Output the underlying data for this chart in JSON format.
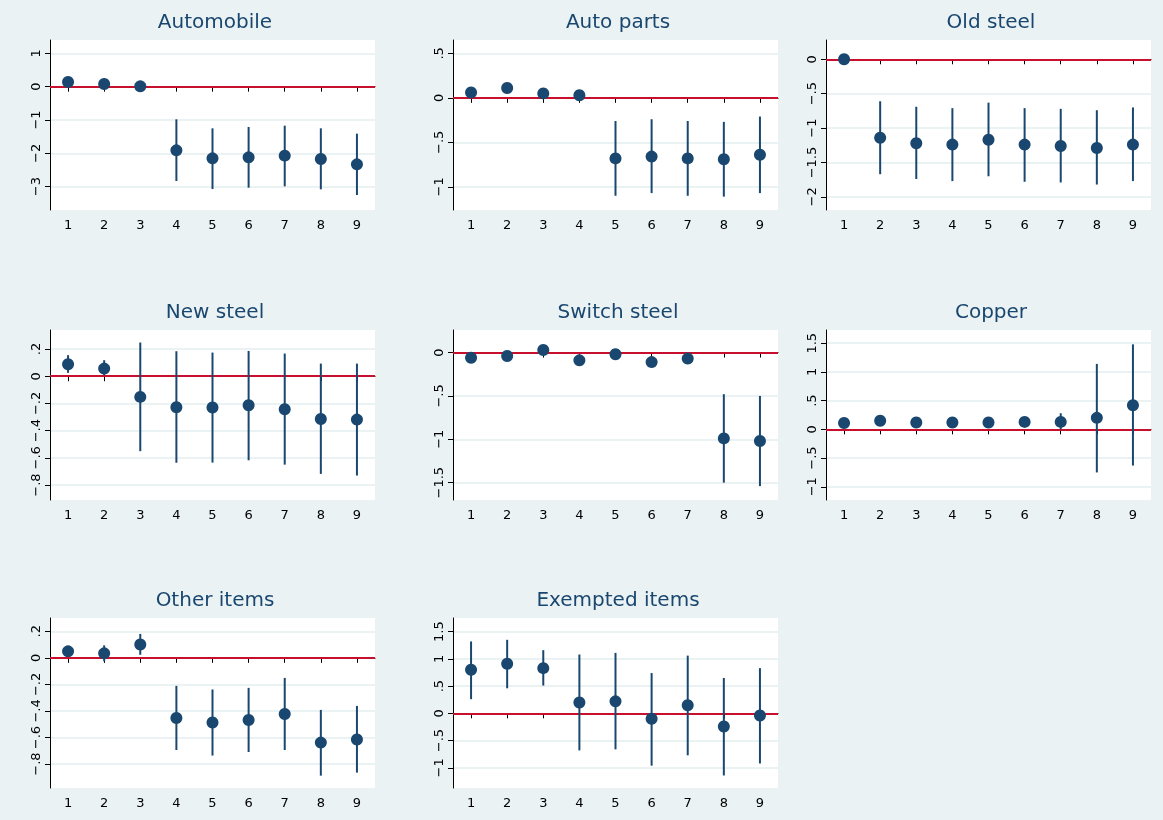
{
  "chart_data": [
    {
      "type": "scatter",
      "title": "Automobile",
      "categories": [
        "1",
        "2",
        "3",
        "4",
        "5",
        "6",
        "7",
        "8",
        "9"
      ],
      "color": "#1a476f",
      "marker": "circle",
      "grid": "y",
      "values": [
        0.14,
        0.08,
        0.01,
        -1.91,
        -2.15,
        -2.12,
        -2.07,
        -2.17,
        -2.33
      ],
      "errors": [
        null,
        null,
        null,
        [
          -2.83,
          -0.98
        ],
        [
          -3.07,
          -1.25
        ],
        [
          -3.03,
          -1.21
        ],
        [
          -2.99,
          -1.17
        ],
        [
          -3.08,
          -1.25
        ],
        [
          -3.25,
          -1.41
        ]
      ],
      "ylim": [
        -3.7,
        1.4
      ],
      "yticks": [
        {
          "value": -3,
          "label": "−3"
        },
        {
          "value": -2,
          "label": "−2"
        },
        {
          "value": -1,
          "label": "−1"
        },
        0,
        1
      ],
      "ref_lines": [
        {
          "axis": "y",
          "value": 0,
          "color": "#c8102e"
        }
      ]
    },
    {
      "type": "scatter",
      "title": "Auto parts",
      "categories": [
        "1",
        "2",
        "3",
        "4",
        "5",
        "6",
        "7",
        "8",
        "9"
      ],
      "color": "#1a476f",
      "marker": "circle",
      "grid": "y",
      "values": [
        0.06,
        0.11,
        0.05,
        0.03,
        -0.68,
        -0.66,
        -0.68,
        -0.69,
        -0.64
      ],
      "errors": [
        null,
        null,
        null,
        null,
        [
          -1.1,
          -0.26
        ],
        [
          -1.07,
          -0.24
        ],
        [
          -1.1,
          -0.26
        ],
        [
          -1.11,
          -0.27
        ],
        [
          -1.07,
          -0.21
        ]
      ],
      "ylim": [
        -1.26,
        0.65
      ],
      "yticks": [
        {
          "value": -1,
          "label": "−1"
        },
        {
          "value": -0.5,
          "label": "−.5"
        },
        0,
        {
          "value": 0.5,
          "label": ".5"
        }
      ],
      "ref_lines": [
        {
          "axis": "y",
          "value": 0,
          "color": "#c8102e"
        }
      ]
    },
    {
      "type": "scatter",
      "title": "Old steel",
      "categories": [
        "1",
        "2",
        "3",
        "4",
        "5",
        "6",
        "7",
        "8",
        "9"
      ],
      "color": "#1a476f",
      "marker": "circle",
      "grid": "y",
      "values": [
        0,
        -1.14,
        -1.22,
        -1.24,
        -1.17,
        -1.24,
        -1.26,
        -1.29,
        -1.24
      ],
      "errors": [
        null,
        [
          -1.67,
          -0.61
        ],
        [
          -1.74,
          -0.69
        ],
        [
          -1.77,
          -0.71
        ],
        [
          -1.7,
          -0.63
        ],
        [
          -1.78,
          -0.71
        ],
        [
          -1.79,
          -0.72
        ],
        [
          -1.82,
          -0.74
        ],
        [
          -1.77,
          -0.7
        ]
      ],
      "ylim": [
        -2.19,
        0.28
      ],
      "yticks": [
        {
          "value": -2,
          "label": "−2"
        },
        {
          "value": -1.5,
          "label": "−1.5"
        },
        {
          "value": -1,
          "label": "−1"
        },
        {
          "value": -0.5,
          "label": "−.5"
        },
        0
      ],
      "ref_lines": [
        {
          "axis": "y",
          "value": 0,
          "color": "#c8102e"
        }
      ]
    },
    {
      "type": "scatter",
      "title": "New steel",
      "categories": [
        "1",
        "2",
        "3",
        "4",
        "5",
        "6",
        "7",
        "8",
        "9"
      ],
      "color": "#1a476f",
      "marker": "circle",
      "grid": "y",
      "values": [
        0.088,
        0.056,
        -0.152,
        -0.228,
        -0.23,
        -0.213,
        -0.243,
        -0.314,
        -0.319
      ],
      "errors": [
        [
          0.025,
          0.155
        ],
        [
          0.007,
          0.118
        ],
        [
          -0.551,
          0.248
        ],
        [
          -0.636,
          0.184
        ],
        [
          -0.635,
          0.174
        ],
        [
          -0.618,
          0.186
        ],
        [
          -0.65,
          0.167
        ],
        [
          -0.718,
          0.093
        ],
        [
          -0.73,
          0.093
        ]
      ],
      "ylim": [
        -0.91,
        0.34
      ],
      "yticks": [
        {
          "value": -0.8,
          "label": "−.8"
        },
        {
          "value": -0.6,
          "label": "−.6"
        },
        {
          "value": -0.4,
          "label": "−.4"
        },
        {
          "value": -0.2,
          "label": "−.2"
        },
        0,
        {
          "value": 0.2,
          "label": ".2"
        }
      ],
      "ref_lines": [
        {
          "axis": "y",
          "value": 0,
          "color": "#c8102e"
        }
      ]
    },
    {
      "type": "scatter",
      "title": "Switch steel",
      "categories": [
        "1",
        "2",
        "3",
        "4",
        "5",
        "6",
        "7",
        "8",
        "9"
      ],
      "color": "#1a476f",
      "marker": "circle",
      "grid": "y",
      "values": [
        -0.06,
        -0.04,
        0.03,
        -0.09,
        -0.02,
        -0.11,
        -0.07,
        -0.99,
        -1.02
      ],
      "errors": [
        null,
        null,
        null,
        null,
        null,
        null,
        null,
        [
          -1.5,
          -0.48
        ],
        [
          -1.54,
          -0.5
        ]
      ],
      "ylim": [
        -1.7,
        0.26
      ],
      "yticks": [
        {
          "value": -1.5,
          "label": "−1.5"
        },
        {
          "value": -1,
          "label": "−1"
        },
        {
          "value": -0.5,
          "label": "−.5"
        },
        0
      ],
      "ref_lines": [
        {
          "axis": "y",
          "value": 0,
          "color": "#c8102e"
        }
      ]
    },
    {
      "type": "scatter",
      "title": "Copper",
      "categories": [
        "1",
        "2",
        "3",
        "4",
        "5",
        "6",
        "7",
        "8",
        "9"
      ],
      "color": "#1a476f",
      "marker": "circle",
      "grid": "y",
      "values": [
        0.11,
        0.15,
        0.12,
        0.12,
        0.12,
        0.13,
        0.13,
        0.2,
        0.42
      ],
      "errors": [
        null,
        null,
        null,
        null,
        null,
        null,
        [
          0,
          0.28
        ],
        [
          -0.75,
          1.14
        ],
        [
          -0.63,
          1.48
        ]
      ],
      "ylim": [
        -1.23,
        1.73
      ],
      "yticks": [
        {
          "value": -1,
          "label": "−1"
        },
        {
          "value": -0.5,
          "label": "−.5"
        },
        0,
        {
          "value": 0.5,
          "label": ".5"
        },
        1,
        1.5
      ],
      "ref_lines": [
        {
          "axis": "y",
          "value": 0,
          "color": "#c8102e"
        }
      ]
    },
    {
      "type": "scatter",
      "title": "Other items",
      "categories": [
        "1",
        "2",
        "3",
        "4",
        "5",
        "6",
        "7",
        "8",
        "9"
      ],
      "color": "#1a476f",
      "marker": "circle",
      "grid": "y",
      "values": [
        0.049,
        0.034,
        0.1,
        -0.453,
        -0.487,
        -0.468,
        -0.423,
        -0.638,
        -0.615
      ],
      "errors": [
        null,
        [
          -0.026,
          0.094
        ],
        [
          0.023,
          0.18
        ],
        [
          -0.694,
          -0.211
        ],
        [
          -0.736,
          -0.238
        ],
        [
          -0.709,
          -0.226
        ],
        [
          -0.694,
          -0.151
        ],
        [
          -0.887,
          -0.392
        ],
        [
          -0.864,
          -0.362
        ]
      ],
      "ylim": [
        -0.98,
        0.3
      ],
      "yticks": [
        {
          "value": -0.8,
          "label": "−.8"
        },
        {
          "value": -0.6,
          "label": "−.6"
        },
        {
          "value": -0.4,
          "label": "−.4"
        },
        {
          "value": -0.2,
          "label": "−.2"
        },
        0,
        {
          "value": 0.2,
          "label": ".2"
        }
      ],
      "ref_lines": [
        {
          "axis": "y",
          "value": 0,
          "color": "#c8102e"
        }
      ]
    },
    {
      "type": "scatter",
      "title": "Exempted items",
      "categories": [
        "1",
        "2",
        "3",
        "4",
        "5",
        "6",
        "7",
        "8",
        "9"
      ],
      "color": "#1a476f",
      "marker": "circle",
      "grid": "y",
      "values": [
        0.8,
        0.91,
        0.83,
        0.2,
        0.22,
        -0.1,
        0.15,
        -0.24,
        -0.04
      ],
      "errors": [
        [
          0.26,
          1.32
        ],
        [
          0.46,
          1.35
        ],
        [
          0.51,
          1.16
        ],
        [
          -0.68,
          1.08
        ],
        [
          -0.66,
          1.11
        ],
        [
          -0.96,
          0.74
        ],
        [
          -0.77,
          1.06
        ],
        [
          -1.14,
          0.65
        ],
        [
          -0.92,
          0.83
        ]
      ],
      "ylim": [
        -1.37,
        1.75
      ],
      "yticks": [
        {
          "value": -1,
          "label": "−1"
        },
        {
          "value": -0.5,
          "label": "−.5"
        },
        0,
        {
          "value": 0.5,
          "label": ".5"
        },
        1,
        1.5
      ],
      "ref_lines": [
        {
          "axis": "y",
          "value": 0,
          "color": "#c8102e"
        }
      ]
    }
  ]
}
